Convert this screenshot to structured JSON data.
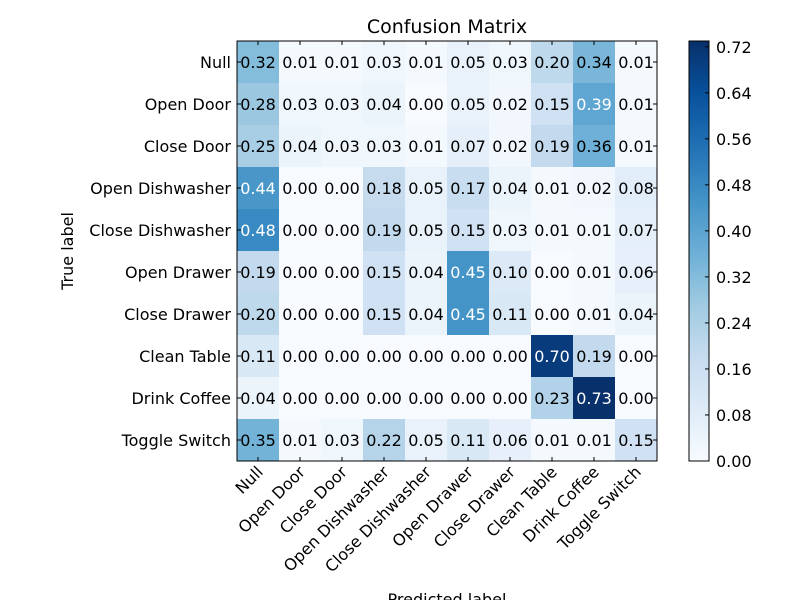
{
  "chart_data": {
    "type": "heatmap",
    "title": "Confusion Matrix",
    "xlabel": "Predicted label",
    "ylabel": "True label",
    "x_categories": [
      "Null",
      "Open Door",
      "Close Door",
      "Open Dishwasher",
      "Close Dishwasher",
      "Open Drawer",
      "Close Drawer",
      "Clean Table",
      "Drink Coffee",
      "Toggle Switch"
    ],
    "y_categories": [
      "Null",
      "Open Door",
      "Close Door",
      "Open Dishwasher",
      "Close Dishwasher",
      "Open Drawer",
      "Close Drawer",
      "Clean Table",
      "Drink Coffee",
      "Toggle Switch"
    ],
    "values": [
      [
        0.32,
        0.01,
        0.01,
        0.03,
        0.01,
        0.05,
        0.03,
        0.2,
        0.34,
        0.01
      ],
      [
        0.28,
        0.03,
        0.03,
        0.04,
        0.0,
        0.05,
        0.02,
        0.15,
        0.39,
        0.01
      ],
      [
        0.25,
        0.04,
        0.03,
        0.03,
        0.01,
        0.07,
        0.02,
        0.19,
        0.36,
        0.01
      ],
      [
        0.44,
        0.0,
        0.0,
        0.18,
        0.05,
        0.17,
        0.04,
        0.01,
        0.02,
        0.08
      ],
      [
        0.48,
        0.0,
        0.0,
        0.19,
        0.05,
        0.15,
        0.03,
        0.01,
        0.01,
        0.07
      ],
      [
        0.19,
        0.0,
        0.0,
        0.15,
        0.04,
        0.45,
        0.1,
        0.0,
        0.01,
        0.06
      ],
      [
        0.2,
        0.0,
        0.0,
        0.15,
        0.04,
        0.45,
        0.11,
        0.0,
        0.01,
        0.04
      ],
      [
        0.11,
        0.0,
        0.0,
        0.0,
        0.0,
        0.0,
        0.0,
        0.7,
        0.19,
        0.0
      ],
      [
        0.04,
        0.0,
        0.0,
        0.0,
        0.0,
        0.0,
        0.0,
        0.23,
        0.73,
        0.0
      ],
      [
        0.35,
        0.01,
        0.03,
        0.22,
        0.05,
        0.11,
        0.06,
        0.01,
        0.01,
        0.15
      ]
    ],
    "value_range": [
      0.0,
      0.73
    ],
    "colormap": "Blues",
    "colorbar_ticks": [
      "0.00",
      "0.08",
      "0.16",
      "0.24",
      "0.32",
      "0.40",
      "0.48",
      "0.56",
      "0.64",
      "0.72"
    ],
    "text_color_light": "#ffffff",
    "text_color_dark": "#000000",
    "text_threshold": 0.365,
    "grid": false
  }
}
